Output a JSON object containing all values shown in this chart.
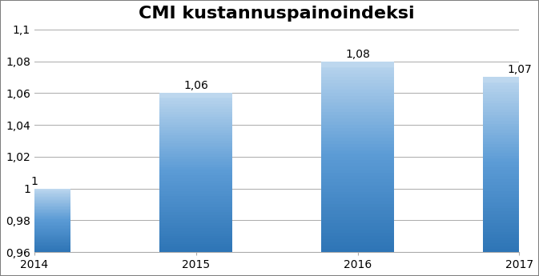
{
  "title": "CMI kustannuspainoindeksi",
  "categories": [
    "2014",
    "2015",
    "2016",
    "2017"
  ],
  "values": [
    1.0,
    1.06,
    1.08,
    1.07
  ],
  "bar_labels": [
    "1",
    "1,06",
    "1,08",
    "1,07"
  ],
  "bar_color_main": "#5B9BD5",
  "bar_color_light": "#9DC3E6",
  "ylim": [
    0.96,
    1.1
  ],
  "yticks": [
    0.96,
    0.98,
    1.0,
    1.02,
    1.04,
    1.06,
    1.08,
    1.1
  ],
  "ytick_labels": [
    "0,96",
    "0,98",
    "1",
    "1,02",
    "1,04",
    "1,06",
    "1,08",
    "1,1"
  ],
  "title_fontsize": 16,
  "label_fontsize": 10,
  "tick_fontsize": 10,
  "background_color": "#ffffff",
  "grid_color": "#aaaaaa",
  "bar_width": 0.45,
  "border_color": "#7f7f7f"
}
